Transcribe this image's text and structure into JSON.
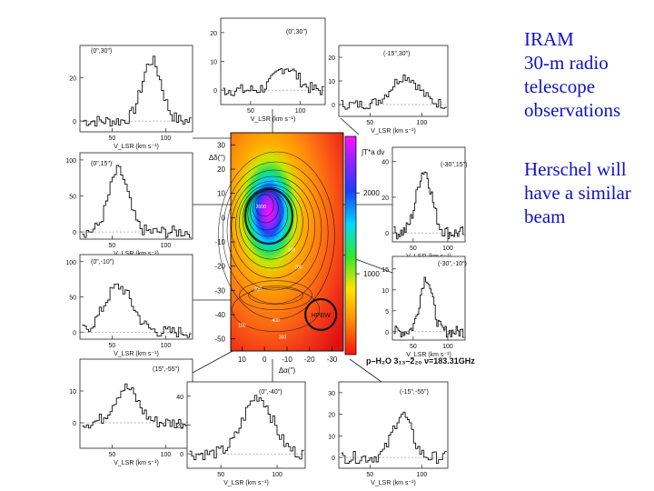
{
  "captions": {
    "line1": "IRAM",
    "line2": "30-m radio",
    "line3": "telescope",
    "line4": "observations",
    "line5": "Herschel will",
    "line6": "have a similar",
    "line7": "beam"
  },
  "chart_data": [
    {
      "type": "heatmap",
      "xlabel": "Δα('')",
      "ylabel": "Δδ('')",
      "colorbar_label": "∫T*a dv",
      "line_label": "p–H₂O 3₁₃–2₂₀  ν=183.31GHz",
      "x_ticks": [
        10,
        0,
        -10,
        -20,
        -30
      ],
      "y_ticks": [
        30,
        20,
        10,
        0,
        -10,
        -20,
        -30,
        -40,
        -50
      ],
      "colorbar_ticks": [
        2000,
        1000
      ],
      "contour_labels": [
        "2600",
        "100",
        "200",
        "400",
        "300",
        "200",
        "100"
      ],
      "peak": {
        "x": 0,
        "y": 5
      },
      "beam_marker": {
        "label": "HPBW",
        "x": -25,
        "y": -40
      },
      "colors": {
        "hot": "#e01010",
        "mid": "#ff9a1a",
        "cool": "#00c8ff",
        "peak": "#ff10ff"
      }
    },
    {
      "type": "line",
      "position_label": "(0\",30\")",
      "xlabel": "V_LSR (km s⁻¹)",
      "x_ticks": [
        50,
        100
      ],
      "y_ticks": [
        0,
        20
      ],
      "ylim": [
        -5,
        35
      ],
      "peak_velocity": 86,
      "peak_value": 28
    },
    {
      "type": "line",
      "position_label": "(0\",30\")",
      "xlabel": "V_LSR (km s⁻¹)",
      "x_ticks": [
        50,
        100
      ],
      "y_ticks": [
        0,
        10,
        20
      ],
      "ylim": [
        -5,
        25
      ],
      "peak_velocity": 85,
      "peak_value": 8
    },
    {
      "type": "line",
      "position_label": "(-15\",30\")",
      "xlabel": "V_LSR (km s⁻¹)",
      "x_ticks": [
        50,
        100
      ],
      "y_ticks": [
        0,
        10,
        20
      ],
      "ylim": [
        -5,
        25
      ],
      "peak_velocity": 83,
      "peak_value": 12
    },
    {
      "type": "line",
      "position_label": "(0\",15\")",
      "xlabel": "V_LSR (km s⁻¹)",
      "x_ticks": [
        50,
        100
      ],
      "y_ticks": [
        0,
        50,
        100
      ],
      "ylim": [
        -10,
        110
      ],
      "peak_velocity": 55,
      "peak_value": 85
    },
    {
      "type": "line",
      "position_label": "(-30\",15\")",
      "xlabel": "V_LSR (km s⁻¹)",
      "x_ticks": [
        50,
        100
      ],
      "y_ticks": [
        0,
        20,
        40
      ],
      "ylim": [
        -5,
        48
      ],
      "peak_velocity": 65,
      "peak_value": 35
    },
    {
      "type": "line",
      "position_label": "(0\",-10\")",
      "xlabel": "V_LSR (km s⁻¹)",
      "x_ticks": [
        50,
        100
      ],
      "y_ticks": [
        0,
        50,
        100
      ],
      "ylim": [
        -10,
        110
      ],
      "peak_velocity": 55,
      "peak_value": 65
    },
    {
      "type": "line",
      "position_label": "(-30\",-10\")",
      "xlabel": "V_LSR (km s⁻¹)",
      "x_ticks": [
        50,
        100
      ],
      "y_ticks": [
        0,
        5,
        10,
        15
      ],
      "ylim": [
        -2,
        18
      ],
      "peak_velocity": 68,
      "peak_value": 13
    },
    {
      "type": "line",
      "position_label": "(15\",-55\")",
      "xlabel": "V_LSR (km s⁻¹)",
      "x_ticks": [
        50,
        100
      ],
      "y_ticks": [
        0,
        10
      ],
      "ylim": [
        -8,
        20
      ],
      "peak_velocity": 62,
      "peak_value": 11
    },
    {
      "type": "line",
      "position_label": "(0\",-40\")",
      "xlabel": "V_LSR (km s⁻¹)",
      "x_ticks": [
        50,
        100
      ],
      "y_ticks": [
        0,
        20,
        40
      ],
      "ylim": [
        -10,
        50
      ],
      "peak_velocity": 82,
      "peak_value": 40
    },
    {
      "type": "line",
      "position_label": "(-15\",-55\")",
      "xlabel": "V_LSR (km s⁻¹)",
      "x_ticks": [
        50,
        100
      ],
      "y_ticks": [
        0,
        10,
        20,
        30
      ],
      "ylim": [
        -5,
        35
      ],
      "peak_velocity": 80,
      "peak_value": 20
    }
  ]
}
